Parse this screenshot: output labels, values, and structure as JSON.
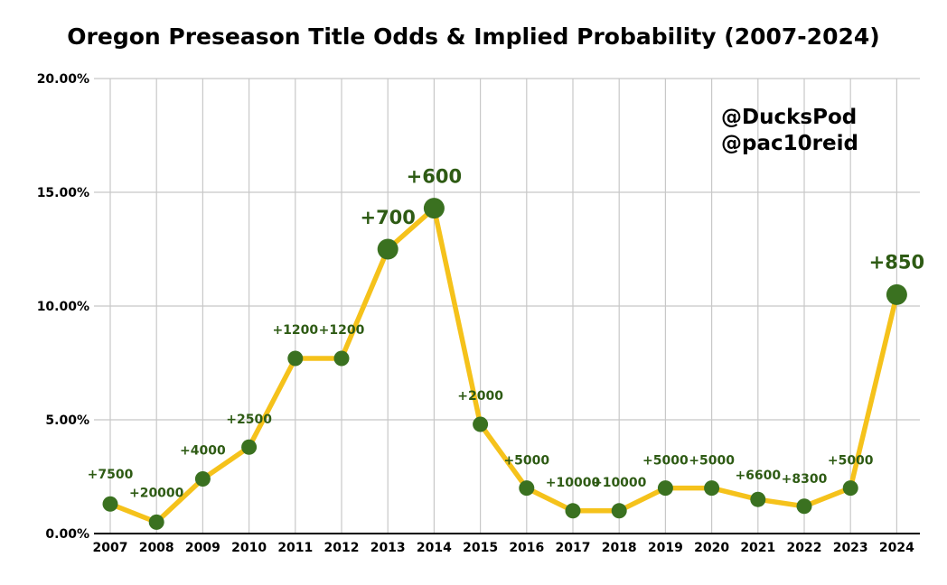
{
  "chart_data": {
    "type": "line",
    "title": "Oregon Preseason Title Odds & Implied Probability (2007-2024)",
    "xlabel": "",
    "ylabel": "",
    "x": [
      "2007",
      "2008",
      "2009",
      "2010",
      "2011",
      "2012",
      "2013",
      "2014",
      "2015",
      "2016",
      "2017",
      "2018",
      "2019",
      "2020",
      "2021",
      "2022",
      "2023",
      "2024"
    ],
    "series": [
      {
        "values": [
          1.3,
          0.5,
          2.4,
          3.8,
          7.7,
          7.7,
          12.5,
          14.3,
          4.8,
          2.0,
          1.0,
          1.0,
          2.0,
          2.0,
          1.5,
          1.2,
          2.0,
          10.5
        ],
        "data_labels": [
          "+7500",
          "+20000",
          "+4000",
          "+2500",
          "+1200",
          "+1200",
          "+700",
          "+600",
          "+2000",
          "+5000",
          "+10000",
          "+10000",
          "+5000",
          "+5000",
          "+6600",
          "+8300",
          "+5000",
          "+850"
        ],
        "highlighted": [
          false,
          false,
          false,
          false,
          false,
          false,
          true,
          true,
          false,
          false,
          false,
          false,
          false,
          false,
          false,
          false,
          false,
          true
        ]
      }
    ],
    "ylim": [
      0,
      20
    ],
    "yticks": [
      0,
      5,
      10,
      15,
      20
    ],
    "ytick_labels": [
      "0.00%",
      "5.00%",
      "10.00%",
      "15.00%",
      "20.00%"
    ],
    "grid": true,
    "annotations": [
      "@DucksPod",
      "@pac10reid"
    ],
    "colors": {
      "line": "#f5c21b",
      "marker": "#3a7120",
      "label": "#2e5b14",
      "grid": "#c8c8c8"
    }
  }
}
